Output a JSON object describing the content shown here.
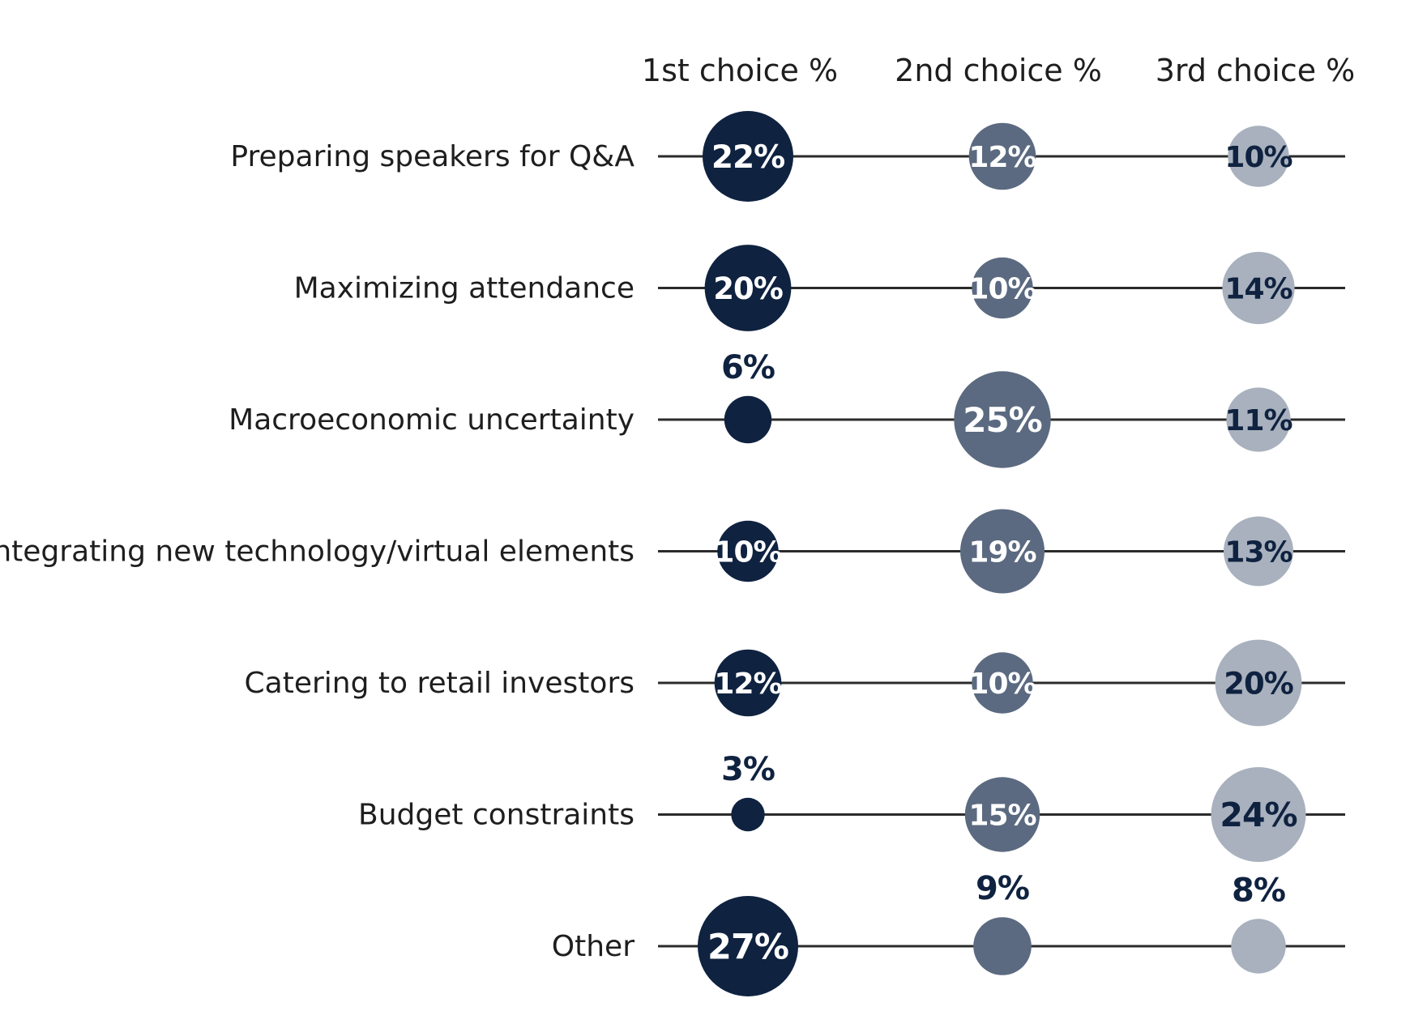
{
  "chart_data": {
    "type": "bubble-matrix",
    "title": "",
    "columns": [
      "1st choice %",
      "2nd choice %",
      "3rd choice %"
    ],
    "categories": [
      "Preparing speakers for Q&A",
      "Maximizing attendance",
      "Macroeconomic uncertainty",
      "Integrating new technology/virtual elements",
      "Catering to retail investors",
      "Budget constraints",
      "Other"
    ],
    "series": [
      {
        "name": "1st choice %",
        "values": [
          22,
          20,
          6,
          10,
          12,
          3,
          27
        ],
        "labels": [
          "22%",
          "20%",
          "6%",
          "10%",
          "12%",
          "3%",
          "27%"
        ],
        "color": "#0f2240",
        "label_color": "#ffffff"
      },
      {
        "name": "2nd choice %",
        "values": [
          12,
          10,
          25,
          19,
          10,
          15,
          9
        ],
        "labels": [
          "12%",
          "10%",
          "25%",
          "19%",
          "10%",
          "15%",
          "9%"
        ],
        "color": "#5b6a80",
        "label_color": "#ffffff"
      },
      {
        "name": "3rd choice %",
        "values": [
          10,
          14,
          11,
          13,
          20,
          24,
          8
        ],
        "labels": [
          "10%",
          "14%",
          "11%",
          "13%",
          "20%",
          "24%",
          "8%"
        ],
        "color": "#a8b1bd",
        "label_color": "#0f2240"
      }
    ],
    "outside_label_color": "#0f2240",
    "line_color": "#2b2b2b"
  }
}
